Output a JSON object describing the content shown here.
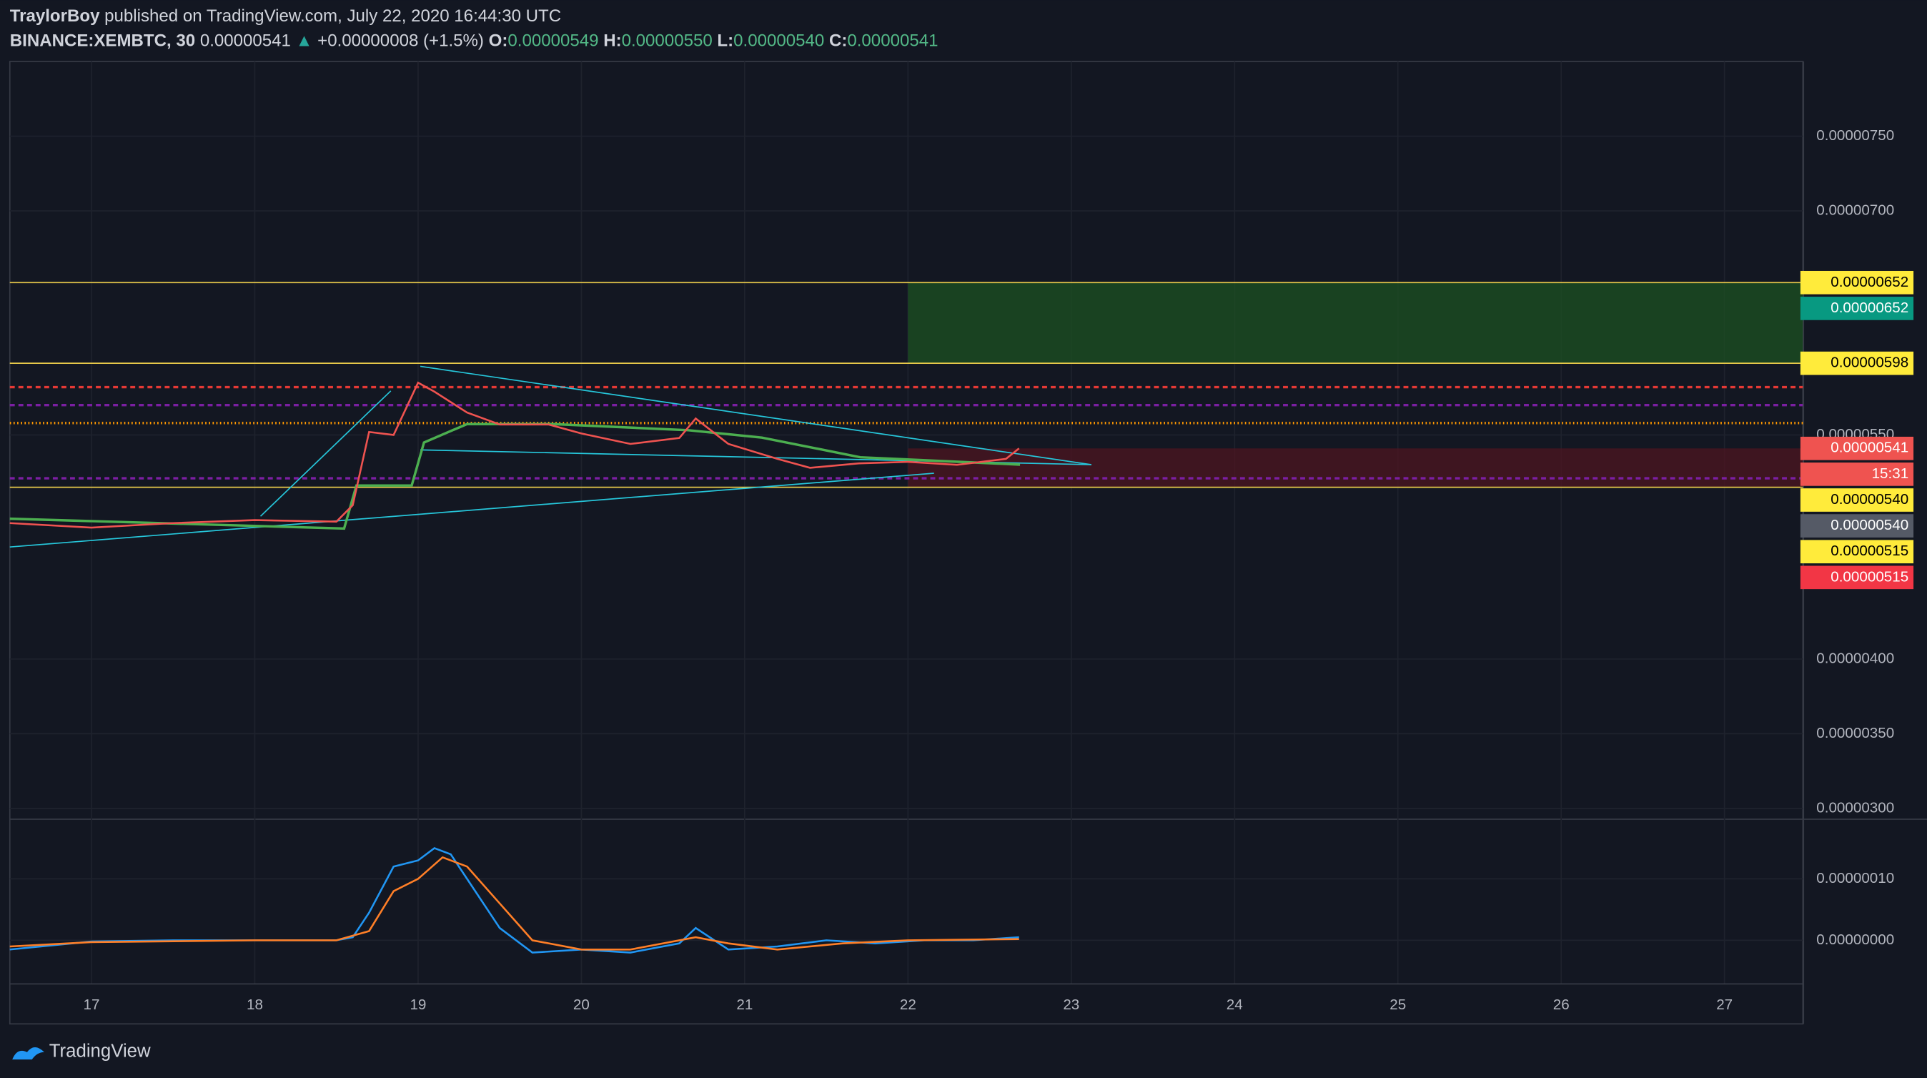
{
  "header": {
    "author": "TraylorBoy",
    "published": "published on TradingView.com, July 22, 2020 16:44:30 UTC",
    "symbol": "BINANCE:XEMBTC, 30",
    "last": "0.00000541",
    "arrow": "▲",
    "change": "+0.00000008 (+1.5%)",
    "o_label": "O:",
    "o": "0.00000549",
    "h_label": "H:",
    "h": "0.00000550",
    "l_label": "L:",
    "l": "0.00000540",
    "c_label": "C:",
    "c": "0.00000541"
  },
  "footer": {
    "brand": "TradingView"
  },
  "chart_data": [
    {
      "type": "line",
      "xlim": [
        16.5,
        27.48
      ],
      "ylim": [
        2.94e-06,
        8e-06
      ],
      "yticks": [
        {
          "value": 7.5e-06,
          "label": "0.00000750"
        },
        {
          "value": 7e-06,
          "label": "0.00000700"
        },
        {
          "value": 5.5e-06,
          "label": "0.00000550"
        },
        {
          "value": 4e-06,
          "label": "0.00000400"
        },
        {
          "value": 3.5e-06,
          "label": "0.00000350"
        },
        {
          "value": 3e-06,
          "label": "0.00000300"
        }
      ],
      "series": [
        {
          "color": "#ef5350",
          "x": [
            16.5,
            17,
            17.5,
            18,
            18.5,
            18.6,
            18.7,
            18.85,
            19.0,
            19.1,
            19.3,
            19.5,
            19.8,
            20.0,
            20.3,
            20.6,
            20.7,
            20.9,
            21.2,
            21.4,
            21.7,
            22.0,
            22.3,
            22.6,
            22.68
          ],
          "values": [
            4.91e-06,
            4.88e-06,
            4.91e-06,
            4.93e-06,
            4.92e-06,
            5.03e-06,
            5.52e-06,
            5.5e-06,
            5.85e-06,
            5.79e-06,
            5.65e-06,
            5.57e-06,
            5.57e-06,
            5.51e-06,
            5.44e-06,
            5.48e-06,
            5.61e-06,
            5.44e-06,
            5.34e-06,
            5.28e-06,
            5.31e-06,
            5.32e-06,
            5.3e-06,
            5.34e-06,
            5.41e-06
          ]
        }
      ],
      "zones": [
        {
          "x_from": 22,
          "from": 5.98e-06,
          "to": 6.52e-06,
          "color": "#1b4d22"
        },
        {
          "x_from": 22,
          "from": 5.15e-06,
          "to": 5.41e-06,
          "color": "#4a1520"
        }
      ],
      "levels": [
        {
          "value": 6.52e-06,
          "color": "#e6c84a",
          "dash": "none"
        },
        {
          "value": 5.98e-06,
          "color": "#e6c84a",
          "dash": "none"
        },
        {
          "value": 5.82e-06,
          "color": "#e53935",
          "dash": "4 3"
        },
        {
          "value": 5.7e-06,
          "color": "#7b1fa2",
          "dash": "4 3"
        },
        {
          "value": 5.58e-06,
          "color": "#ff9800",
          "dash": "1 2"
        },
        {
          "value": 5.21e-06,
          "color": "#7b1fa2",
          "dash": "4 3"
        },
        {
          "value": 5.15e-06,
          "color": "#e6c84a",
          "dash": "none"
        }
      ],
      "badges": [
        {
          "value": 6.52e-06,
          "label": "0.00000652",
          "color": "#ffeb3b",
          "text": "#000000"
        },
        {
          "value": 6.52e-06,
          "label": "0.00000652",
          "color": "#089981",
          "text": "#ffffff"
        },
        {
          "value": 5.98e-06,
          "label": "0.00000598",
          "color": "#ffeb3b",
          "text": "#000000"
        },
        {
          "value": 5.41e-06,
          "label": "0.00000541",
          "color": "#ef5350",
          "text": "#ffffff"
        },
        {
          "label": "15:31",
          "color": "#ef5350",
          "text": "#ffffff"
        },
        {
          "value": 5.4e-06,
          "label": "0.00000540",
          "color": "#ffeb3b",
          "text": "#000000"
        },
        {
          "value": 5.4e-06,
          "label": "0.00000540",
          "color": "#555a66",
          "text": "#ffffff"
        },
        {
          "value": 5.15e-06,
          "label": "0.00000515",
          "color": "#ffeb3b",
          "text": "#000000"
        },
        {
          "value": 5.15e-06,
          "label": "0.00000515",
          "color": "#f23645",
          "text": "#ffffff"
        }
      ]
    },
    {
      "type": "line",
      "xlim": [
        16.5,
        27.48
      ],
      "ylim": [
        -7e-08,
        1.94e-07
      ],
      "yticks": [
        {
          "value": 1e-07,
          "label": "0.00000010"
        },
        {
          "value": 0,
          "label": "0.00000000"
        }
      ],
      "xticks": [
        17,
        18,
        19,
        20,
        21,
        22,
        23,
        24,
        25,
        26,
        27
      ],
      "series": [
        {
          "color": "#2196f3",
          "x": [
            16.5,
            17,
            17.5,
            18,
            18.5,
            18.6,
            18.7,
            18.85,
            19.0,
            19.1,
            19.2,
            19.35,
            19.5,
            19.7,
            20.0,
            20.3,
            20.6,
            20.7,
            20.9,
            21.2,
            21.5,
            21.8,
            22.1,
            22.4,
            22.68
          ],
          "values": [
            -1.5e-08,
            -2e-09,
            0,
            0,
            0,
            5e-09,
            4.5e-08,
            1.2e-07,
            1.3e-07,
            1.5e-07,
            1.4e-07,
            8e-08,
            2e-08,
            -2e-08,
            -1.5e-08,
            -2e-08,
            -5e-09,
            2e-08,
            -1.5e-08,
            -1e-08,
            0,
            -5e-09,
            0,
            0,
            5e-09
          ]
        },
        {
          "color": "#ff7f27",
          "x": [
            16.5,
            17,
            18,
            18.5,
            18.7,
            18.85,
            19.0,
            19.15,
            19.3,
            19.5,
            19.7,
            20.0,
            20.3,
            20.7,
            20.9,
            21.2,
            21.6,
            22.0,
            22.68
          ],
          "values": [
            -1e-08,
            -3e-09,
            0,
            0,
            1.5e-08,
            8e-08,
            1e-07,
            1.35e-07,
            1.2e-07,
            6e-08,
            0,
            -1.5e-08,
            -1.5e-08,
            5e-09,
            -5e-09,
            -1.5e-08,
            -5e-09,
            0,
            2e-09
          ]
        }
      ]
    }
  ]
}
